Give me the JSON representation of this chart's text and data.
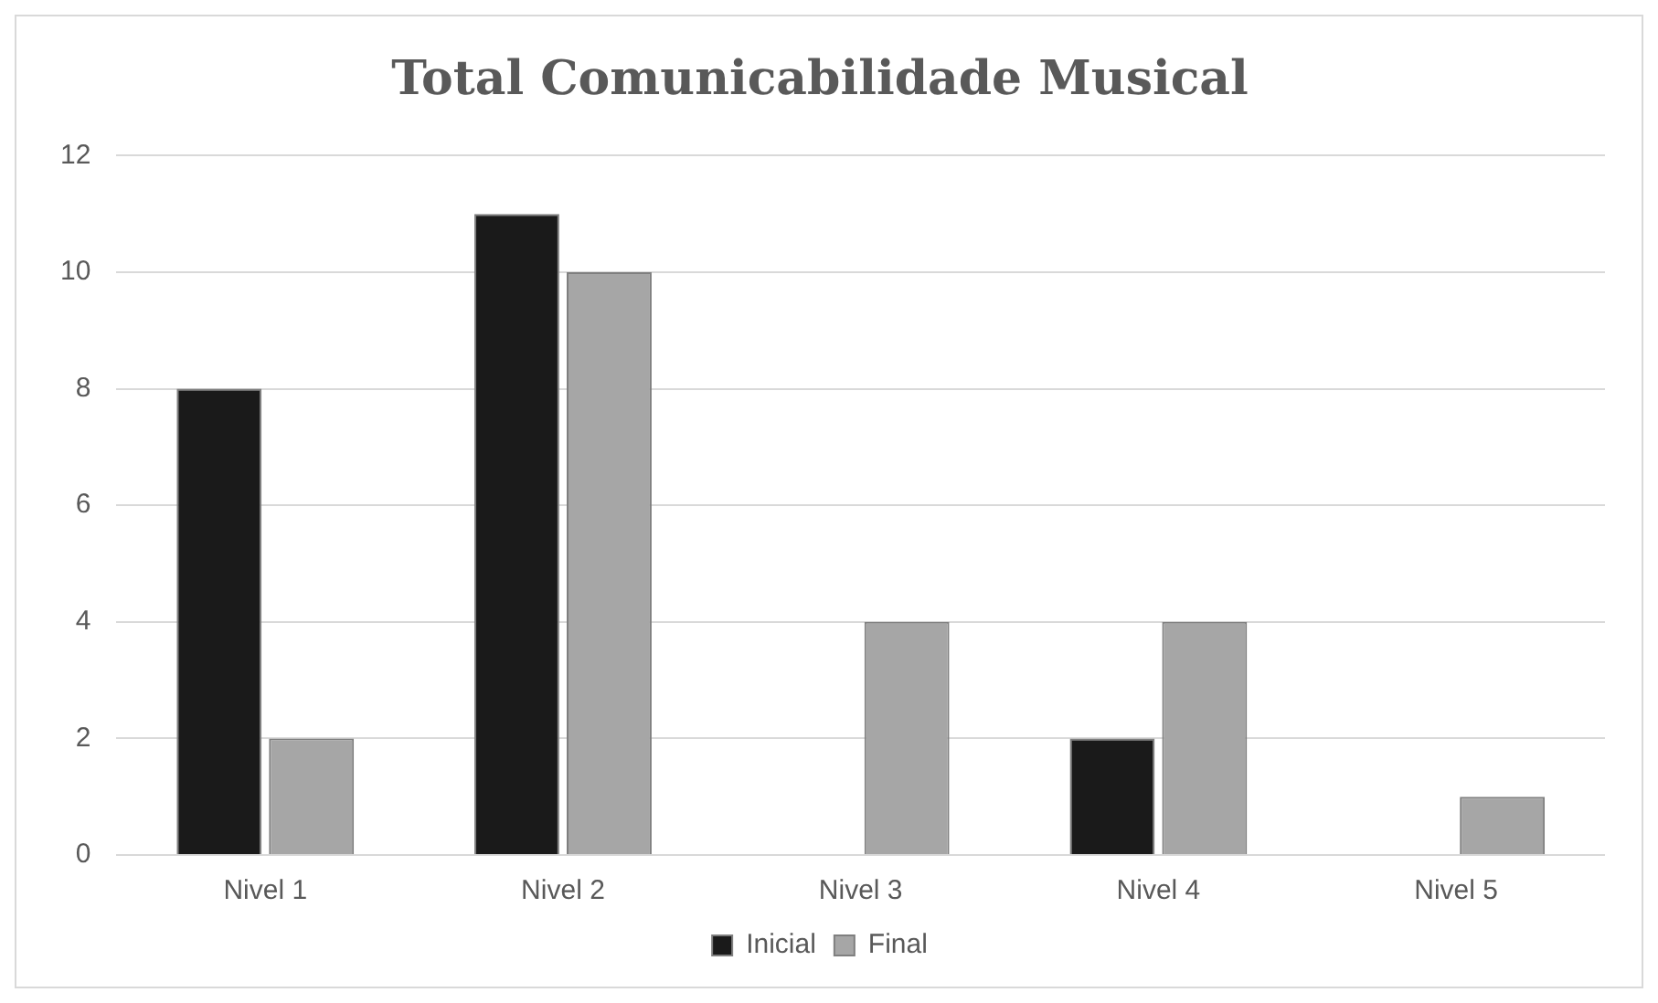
{
  "chart_data": {
    "type": "bar",
    "title": "Total Comunicabilidade Musical",
    "categories": [
      "Nivel 1",
      "Nivel 2",
      "Nivel 3",
      "Nivel 4",
      "Nivel 5"
    ],
    "series": [
      {
        "name": "Inicial",
        "color": "#1a1a1a",
        "values": [
          8,
          11,
          0,
          2,
          0
        ]
      },
      {
        "name": "Final",
        "color": "#a6a6a6",
        "values": [
          2,
          10,
          4,
          4,
          1
        ]
      }
    ],
    "ylim": [
      0,
      12
    ],
    "yticks": [
      0,
      2,
      4,
      6,
      8,
      10,
      12
    ],
    "grid": "y",
    "legend": "bottom"
  }
}
